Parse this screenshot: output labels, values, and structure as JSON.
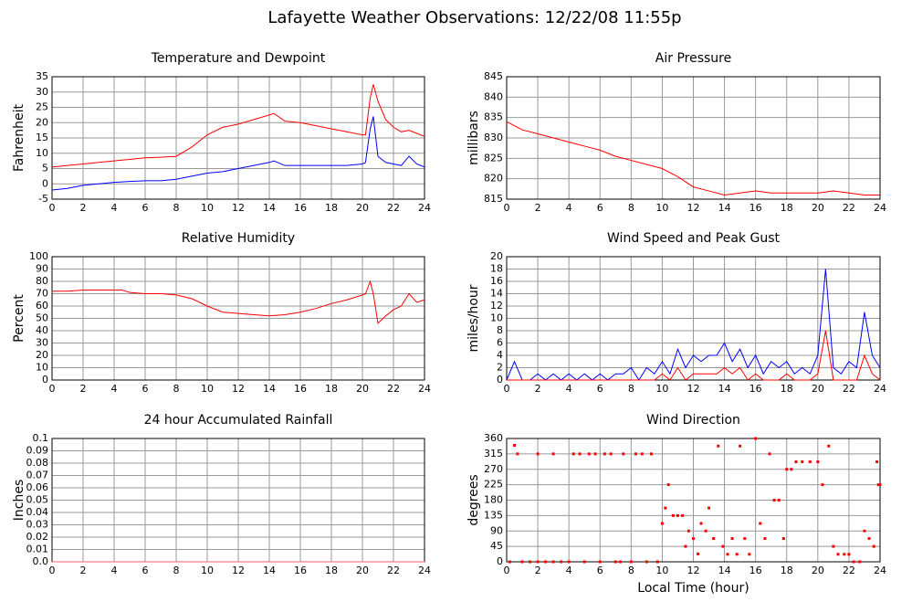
{
  "title": "Lafayette Weather Observations: 12/22/08 11:55p",
  "chart_data": [
    {
      "type": "line",
      "title": "Temperature and Dewpoint",
      "ylabel": "Fahrenheit",
      "x": [
        0,
        1,
        2,
        3,
        4,
        5,
        6,
        7,
        8,
        9,
        10,
        11,
        12,
        13,
        14,
        14.3,
        15,
        16,
        17,
        18,
        19,
        20,
        20.2,
        20.5,
        20.7,
        21,
        21.5,
        22,
        22.5,
        23,
        23.5,
        24
      ],
      "series": [
        {
          "name": "Temperature",
          "color": "#ff0000",
          "values": [
            5.5,
            6,
            6.5,
            7,
            7.5,
            8,
            8.5,
            8.7,
            9,
            12,
            16,
            18.5,
            19.5,
            21,
            22.5,
            23,
            20.5,
            20,
            19,
            18,
            17,
            16,
            16,
            28,
            32.5,
            27,
            21,
            18.5,
            17,
            17.5,
            16.5,
            15.5
          ]
        },
        {
          "name": "Dewpoint",
          "color": "#0000ff",
          "values": [
            -2,
            -1.5,
            -0.5,
            0,
            0.5,
            0.8,
            1,
            1,
            1.5,
            2.5,
            3.5,
            4,
            5,
            6,
            7,
            7.5,
            6,
            6,
            6,
            6,
            6,
            6.5,
            7,
            18,
            22,
            9,
            7,
            6.5,
            6,
            9,
            6.5,
            5.5
          ]
        }
      ],
      "xlim": [
        0,
        24
      ],
      "xticks": [
        0,
        2,
        4,
        6,
        8,
        10,
        12,
        14,
        16,
        18,
        20,
        22,
        24
      ],
      "ylim": [
        -5,
        35
      ],
      "yticks": [
        -5,
        0,
        5,
        10,
        15,
        20,
        25,
        30,
        35
      ],
      "grid": true
    },
    {
      "type": "line",
      "title": "Air Pressure",
      "ylabel": "millibars",
      "x": [
        0,
        1,
        2,
        3,
        4,
        5,
        6,
        7,
        8,
        9,
        10,
        11,
        12,
        13,
        14,
        15,
        16,
        17,
        18,
        19,
        20,
        21,
        22,
        23,
        24
      ],
      "series": [
        {
          "name": "Pressure",
          "color": "#ff0000",
          "values": [
            834,
            832,
            831,
            830,
            829,
            828,
            827,
            825.5,
            824.5,
            823.5,
            822.5,
            820.5,
            818,
            817,
            816,
            816.5,
            817,
            816.5,
            816.5,
            816.5,
            816.5,
            817,
            816.5,
            816,
            816
          ]
        }
      ],
      "xlim": [
        0,
        24
      ],
      "xticks": [
        0,
        2,
        4,
        6,
        8,
        10,
        12,
        14,
        16,
        18,
        20,
        22,
        24
      ],
      "ylim": [
        815,
        845
      ],
      "yticks": [
        815,
        820,
        825,
        830,
        835,
        840,
        845
      ],
      "grid": true
    },
    {
      "type": "line",
      "title": "Relative Humidity",
      "ylabel": "Percent",
      "x": [
        0,
        1,
        2,
        3,
        4,
        4.5,
        5,
        6,
        7,
        8,
        9,
        10,
        11,
        12,
        13,
        14,
        15,
        16,
        17,
        18,
        19,
        20,
        20.2,
        20.5,
        20.7,
        21,
        21.5,
        22,
        22.5,
        23,
        23.5,
        24
      ],
      "series": [
        {
          "name": "Humidity",
          "color": "#ff0000",
          "values": [
            72,
            72,
            73,
            73,
            73,
            73,
            71,
            70,
            70,
            69,
            66,
            60,
            55,
            54,
            53,
            52,
            53,
            55,
            58,
            62,
            65,
            69,
            70,
            80,
            70,
            46,
            52,
            57,
            60,
            70,
            63,
            65
          ]
        }
      ],
      "xlim": [
        0,
        24
      ],
      "xticks": [
        0,
        2,
        4,
        6,
        8,
        10,
        12,
        14,
        16,
        18,
        20,
        22,
        24
      ],
      "ylim": [
        0,
        100
      ],
      "yticks": [
        0,
        10,
        20,
        30,
        40,
        50,
        60,
        70,
        80,
        90,
        100
      ],
      "grid": true
    },
    {
      "type": "line",
      "title": "Wind Speed and Peak Gust",
      "ylabel": "miles/hour",
      "x": [
        0,
        0.5,
        1,
        1.5,
        2,
        2.5,
        3,
        3.5,
        4,
        4.5,
        5,
        5.5,
        6,
        6.5,
        7,
        7.5,
        8,
        8.5,
        9,
        9.5,
        10,
        10.5,
        11,
        11.5,
        12,
        12.5,
        13,
        13.5,
        14,
        14.5,
        15,
        15.5,
        16,
        16.5,
        17,
        17.5,
        18,
        18.5,
        19,
        19.5,
        20,
        20.5,
        21,
        21.5,
        22,
        22.5,
        23,
        23.5,
        24
      ],
      "series": [
        {
          "name": "Peak Gust",
          "color": "#0000ff",
          "values": [
            0,
            3,
            0,
            0,
            1,
            0,
            1,
            0,
            1,
            0,
            1,
            0,
            1,
            0,
            1,
            1,
            2,
            0,
            2,
            1,
            3,
            1,
            5,
            2,
            4,
            3,
            4,
            4,
            6,
            3,
            5,
            2,
            4,
            1,
            3,
            2,
            3,
            1,
            2,
            1,
            4,
            18,
            2,
            1,
            3,
            2,
            11,
            4,
            2
          ]
        },
        {
          "name": "Wind Speed",
          "color": "#ff0000",
          "values": [
            0,
            0,
            0,
            0,
            0,
            0,
            0,
            0,
            0,
            0,
            0,
            0,
            0,
            0,
            0,
            0,
            0,
            0,
            0,
            0,
            1,
            0,
            2,
            0,
            1,
            1,
            1,
            1,
            2,
            1,
            2,
            0,
            1,
            0,
            0,
            0,
            1,
            0,
            0,
            0,
            1,
            8,
            0,
            0,
            0,
            0,
            4,
            1,
            0
          ]
        }
      ],
      "xlim": [
        0,
        24
      ],
      "xticks": [
        0,
        2,
        4,
        6,
        8,
        10,
        12,
        14,
        16,
        18,
        20,
        22,
        24
      ],
      "ylim": [
        0,
        20
      ],
      "yticks": [
        0,
        2,
        4,
        6,
        8,
        10,
        12,
        14,
        16,
        18,
        20
      ],
      "grid": true
    },
    {
      "type": "line",
      "title": "24 hour Accumulated Rainfall",
      "ylabel": "Inches",
      "x": [
        0,
        24
      ],
      "series": [
        {
          "name": "Rainfall",
          "color": "#ff6070",
          "values": [
            0,
            0
          ]
        }
      ],
      "xlim": [
        0,
        24
      ],
      "xticks": [
        0,
        2,
        4,
        6,
        8,
        10,
        12,
        14,
        16,
        18,
        20,
        22,
        24
      ],
      "ylim": [
        0,
        0.1
      ],
      "yticks": [
        {
          "value": 0,
          "label": "0.0"
        },
        0.01,
        0.02,
        0.03,
        0.04,
        0.05,
        0.06,
        0.07,
        0.08,
        0.09,
        0.1
      ],
      "grid": true
    },
    {
      "type": "scatter",
      "title": "Wind Direction",
      "ylabel": "degrees",
      "xlabel": "Local Time (hour)",
      "x": [
        0.2,
        0.5,
        0.7,
        1,
        1.5,
        2,
        2,
        2.5,
        3,
        3,
        3.5,
        4,
        4.3,
        4.7,
        5,
        5.3,
        5.7,
        6,
        6.3,
        6.7,
        7,
        7.3,
        7.5,
        8,
        8.3,
        8.7,
        9,
        9.3,
        9.7,
        10,
        10.2,
        10.4,
        10.7,
        11,
        11.3,
        11.5,
        11.7,
        12,
        12.3,
        12.5,
        12.8,
        13,
        13.3,
        13.6,
        13.9,
        14.2,
        14.5,
        14.8,
        15,
        15.3,
        15.6,
        16,
        16.3,
        16.6,
        16.9,
        17.2,
        17.5,
        17.8,
        18,
        18.3,
        18.6,
        19,
        19.5,
        20,
        20.3,
        20.7,
        21,
        21.3,
        21.7,
        22,
        22.3,
        22.7,
        23,
        23.3,
        23.6,
        23.8,
        23.9,
        24
      ],
      "series": [
        {
          "name": "Direction",
          "color": "#ff0000",
          "values": [
            0,
            340,
            315,
            0,
            0,
            0,
            315,
            0,
            0,
            315,
            0,
            0,
            315,
            315,
            0,
            315,
            315,
            0,
            315,
            315,
            0,
            0,
            315,
            0,
            315,
            315,
            0,
            315,
            0,
            112,
            157,
            225,
            135,
            135,
            135,
            45,
            90,
            68,
            23,
            112,
            90,
            157,
            68,
            338,
            45,
            22,
            68,
            22,
            338,
            68,
            22,
            360,
            112,
            68,
            315,
            180,
            180,
            68,
            270,
            270,
            292,
            292,
            292,
            292,
            225,
            338,
            45,
            22,
            22,
            22,
            0,
            0,
            90,
            68,
            45,
            292,
            225,
            225
          ]
        }
      ],
      "xlim": [
        0,
        24
      ],
      "xticks": [
        0,
        2,
        4,
        6,
        8,
        10,
        12,
        14,
        16,
        18,
        20,
        22,
        24
      ],
      "ylim": [
        0,
        360
      ],
      "yticks": [
        0,
        45,
        90,
        135,
        180,
        225,
        270,
        315,
        360
      ],
      "grid": true
    }
  ]
}
